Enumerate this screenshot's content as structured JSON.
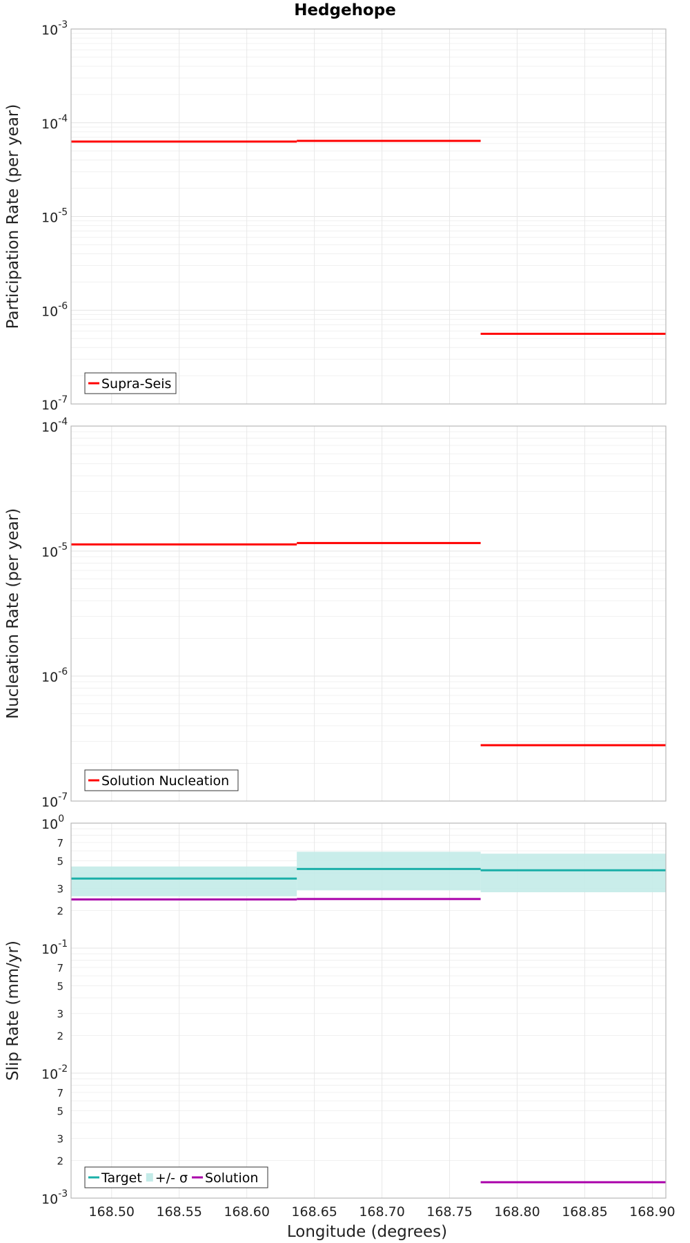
{
  "chart_data": [
    {
      "type": "line",
      "title": "Hedgehope",
      "ylabel": "Participation Rate (per year)",
      "xlabel": "",
      "yscale": "log",
      "ylim": [
        1e-07,
        0.001
      ],
      "xlim": [
        168.47,
        168.91
      ],
      "grid": true,
      "legend_position": "bottom-left",
      "y_ticks": [
        {
          "base": "10",
          "exp": "-7",
          "value": 1e-07
        },
        {
          "base": "10",
          "exp": "-6",
          "value": 1e-06
        },
        {
          "base": "10",
          "exp": "-5",
          "value": 1e-05
        },
        {
          "base": "10",
          "exp": "-4",
          "value": 0.0001
        },
        {
          "base": "10",
          "exp": "-3",
          "value": 0.001
        }
      ],
      "series": [
        {
          "name": "Supra-Seis",
          "color": "#ff0000",
          "style": "step",
          "segments": [
            {
              "x0": 168.47,
              "x1": 168.637,
              "y": 6.3e-05
            },
            {
              "x0": 168.637,
              "x1": 168.773,
              "y": 6.4e-05
            },
            {
              "x0": 168.773,
              "x1": 168.91,
              "y": 5.6e-07
            }
          ]
        }
      ]
    },
    {
      "type": "line",
      "ylabel": "Nucleation Rate (per year)",
      "xlabel": "",
      "yscale": "log",
      "ylim": [
        1e-07,
        0.0001
      ],
      "xlim": [
        168.47,
        168.91
      ],
      "grid": true,
      "legend_position": "bottom-left",
      "y_ticks": [
        {
          "base": "10",
          "exp": "-7",
          "value": 1e-07
        },
        {
          "base": "10",
          "exp": "-6",
          "value": 1e-06
        },
        {
          "base": "10",
          "exp": "-5",
          "value": 1e-05
        },
        {
          "base": "10",
          "exp": "-4",
          "value": 0.0001
        }
      ],
      "series": [
        {
          "name": "Solution Nucleation",
          "color": "#ff0000",
          "style": "step",
          "segments": [
            {
              "x0": 168.47,
              "x1": 168.637,
              "y": 1.13e-05
            },
            {
              "x0": 168.637,
              "x1": 168.773,
              "y": 1.16e-05
            },
            {
              "x0": 168.773,
              "x1": 168.91,
              "y": 2.8e-07
            }
          ]
        }
      ]
    },
    {
      "type": "line",
      "ylabel": "Slip Rate (mm/yr)",
      "xlabel": "Longitude (degrees)",
      "yscale": "log",
      "ylim": [
        0.001,
        1
      ],
      "xlim": [
        168.47,
        168.91
      ],
      "grid": true,
      "legend_position": "bottom-left",
      "y_ticks": [
        {
          "base": "10",
          "exp": "-3",
          "value": 0.001
        },
        {
          "base": "10",
          "exp": "-2",
          "value": 0.01
        },
        {
          "base": "10",
          "exp": "-1",
          "value": 0.1
        },
        {
          "base": "10",
          "exp": "0",
          "value": 1
        }
      ],
      "y_minor_ticks": [
        {
          "label": "2",
          "value": 0.002
        },
        {
          "label": "3",
          "value": 0.003
        },
        {
          "label": "5",
          "value": 0.005
        },
        {
          "label": "7",
          "value": 0.007
        },
        {
          "label": "2",
          "value": 0.02
        },
        {
          "label": "3",
          "value": 0.03
        },
        {
          "label": "5",
          "value": 0.05
        },
        {
          "label": "7",
          "value": 0.07
        },
        {
          "label": "2",
          "value": 0.2
        },
        {
          "label": "3",
          "value": 0.3
        },
        {
          "label": "5",
          "value": 0.5
        },
        {
          "label": "7",
          "value": 0.7
        }
      ],
      "x_ticks": [
        "168.50",
        "168.55",
        "168.60",
        "168.65",
        "168.70",
        "168.75",
        "168.80",
        "168.85",
        "168.90"
      ],
      "series": [
        {
          "name": "Target",
          "color": "#1aafa8",
          "style": "step",
          "segments": [
            {
              "x0": 168.47,
              "x1": 168.637,
              "y": 0.36
            },
            {
              "x0": 168.637,
              "x1": 168.773,
              "y": 0.43
            },
            {
              "x0": 168.773,
              "x1": 168.91,
              "y": 0.42
            }
          ]
        },
        {
          "name": "+/- σ",
          "color": "#c3ebe8",
          "style": "band",
          "segments": [
            {
              "x0": 168.47,
              "x1": 168.637,
              "low": 0.26,
              "high": 0.45
            },
            {
              "x0": 168.637,
              "x1": 168.773,
              "low": 0.29,
              "high": 0.59
            },
            {
              "x0": 168.773,
              "x1": 168.91,
              "low": 0.28,
              "high": 0.57
            }
          ]
        },
        {
          "name": "Solution",
          "color": "#aa00aa",
          "style": "step",
          "segments": [
            {
              "x0": 168.47,
              "x1": 168.637,
              "y": 0.245
            },
            {
              "x0": 168.637,
              "x1": 168.773,
              "y": 0.247
            },
            {
              "x0": 168.773,
              "x1": 168.91,
              "y": 0.00134
            }
          ]
        }
      ]
    }
  ]
}
